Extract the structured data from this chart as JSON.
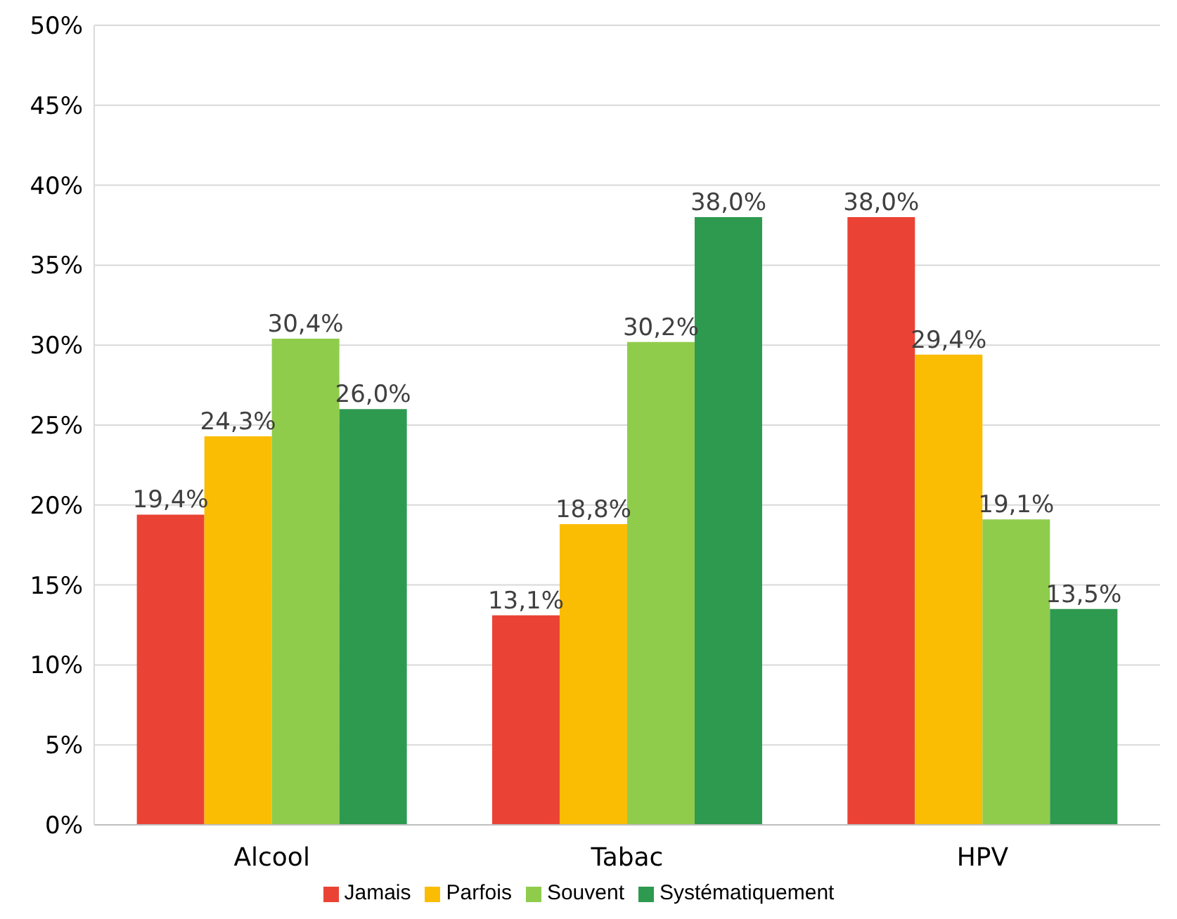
{
  "chart_data": {
    "type": "bar",
    "categories": [
      "Alcool",
      "Tabac",
      "HPV"
    ],
    "series": [
      {
        "name": "Jamais",
        "color": "#ea4335",
        "values": [
          19.4,
          13.1,
          38.0
        ],
        "value_labels": [
          "19,4%",
          "13,1%",
          "38,0%"
        ]
      },
      {
        "name": "Parfois",
        "color": "#fbbc04",
        "values": [
          24.3,
          18.8,
          29.4
        ],
        "value_labels": [
          "24,3%",
          "18,8%",
          "29,4%"
        ]
      },
      {
        "name": "Souvent",
        "color": "#8fcc4c",
        "values": [
          30.4,
          30.2,
          19.1
        ],
        "value_labels": [
          "30,4%",
          "30,2%",
          "19,1%"
        ]
      },
      {
        "name": "Systématiquement",
        "color": "#2e9a4f",
        "values": [
          26.0,
          38.0,
          13.5
        ],
        "value_labels": [
          "26,0%",
          "38,0%",
          "13,5%"
        ]
      }
    ],
    "ylim": [
      0,
      50
    ],
    "yticks": [
      {
        "value": 0,
        "label": "0%"
      },
      {
        "value": 5,
        "label": "5%"
      },
      {
        "value": 10,
        "label": "10%"
      },
      {
        "value": 15,
        "label": "15%"
      },
      {
        "value": 20,
        "label": "20%"
      },
      {
        "value": 25,
        "label": "25%"
      },
      {
        "value": 30,
        "label": "30%"
      },
      {
        "value": 35,
        "label": "35%"
      },
      {
        "value": 40,
        "label": "40%"
      },
      {
        "value": 45,
        "label": "45%"
      },
      {
        "value": 50,
        "label": "50%"
      }
    ],
    "grid": "y",
    "legend": "bottom"
  }
}
